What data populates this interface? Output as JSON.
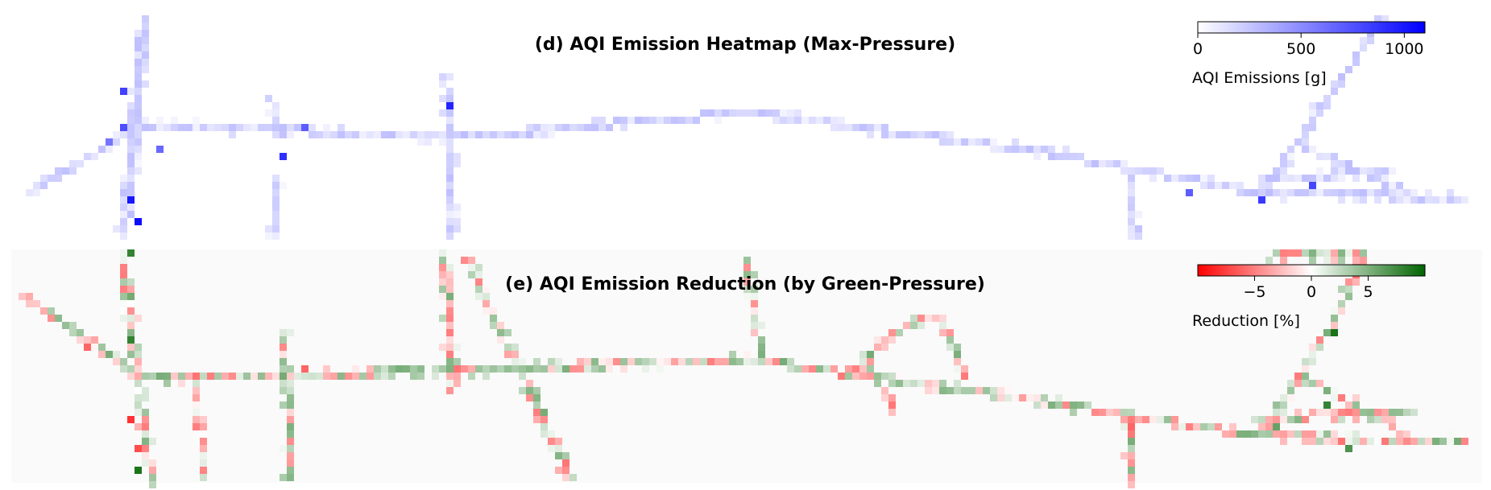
{
  "chart_data": [
    {
      "type": "heatmap",
      "panel": "d",
      "title": "(d) AQI Emission Heatmap (Max-Pressure)",
      "background": "#ffffff",
      "colormap": {
        "low": "#ffffff",
        "high": "#0000ff"
      },
      "colorbar": {
        "label": "AQI Emissions [g]",
        "range": [
          0,
          1100
        ],
        "ticks": [
          0,
          500,
          1000
        ],
        "tick_labels": [
          "0",
          "500",
          "1000"
        ]
      },
      "value_range_cells": [
        0,
        1100
      ],
      "network_segments": [
        {
          "from": [
            0.01,
            0.8
          ],
          "to": [
            0.09,
            0.5
          ]
        },
        {
          "from": [
            0.09,
            0.5
          ],
          "to": [
            0.3,
            0.56
          ]
        },
        {
          "from": [
            0.3,
            0.56
          ],
          "to": [
            0.5,
            0.45
          ]
        },
        {
          "from": [
            0.5,
            0.45
          ],
          "to": [
            0.7,
            0.62
          ]
        },
        {
          "from": [
            0.7,
            0.62
          ],
          "to": [
            0.85,
            0.8
          ]
        },
        {
          "from": [
            0.85,
            0.8
          ],
          "to": [
            0.99,
            0.82
          ]
        },
        {
          "from": [
            0.075,
            0.98
          ],
          "to": [
            0.09,
            0.05
          ]
        },
        {
          "from": [
            0.08,
            0.9
          ],
          "to": [
            0.09,
            0.1
          ]
        },
        {
          "from": [
            0.3,
            0.6
          ],
          "to": [
            0.3,
            0.99
          ]
        },
        {
          "from": [
            0.18,
            0.72
          ],
          "to": [
            0.18,
            0.98
          ]
        },
        {
          "from": [
            0.295,
            0.3
          ],
          "to": [
            0.3,
            0.58
          ]
        },
        {
          "from": [
            0.76,
            0.72
          ],
          "to": [
            0.765,
            0.99
          ]
        },
        {
          "from": [
            0.85,
            0.8
          ],
          "to": [
            0.9,
            0.35
          ]
        },
        {
          "from": [
            0.9,
            0.35
          ],
          "to": [
            0.93,
            0.05
          ]
        },
        {
          "from": [
            0.88,
            0.6
          ],
          "to": [
            0.95,
            0.8
          ]
        },
        {
          "from": [
            0.85,
            0.74
          ],
          "to": [
            0.94,
            0.7
          ]
        },
        {
          "from": [
            0.175,
            0.38
          ],
          "to": [
            0.185,
            0.56
          ]
        }
      ],
      "hotspots": [
        {
          "cell": [
            0.075,
            0.37
          ],
          "value": 820
        },
        {
          "cell": [
            0.078,
            0.5
          ],
          "value": 760
        },
        {
          "cell": [
            0.083,
            0.83
          ],
          "value": 1000
        },
        {
          "cell": [
            0.086,
            0.93
          ],
          "value": 1050
        },
        {
          "cell": [
            0.185,
            0.63
          ],
          "value": 900
        },
        {
          "cell": [
            0.3,
            0.43
          ],
          "value": 950
        },
        {
          "cell": [
            0.2,
            0.52
          ],
          "value": 700
        },
        {
          "cell": [
            0.85,
            0.82
          ],
          "value": 850
        },
        {
          "cell": [
            0.885,
            0.76
          ],
          "value": 800
        },
        {
          "cell": [
            0.8,
            0.8
          ],
          "value": 700
        },
        {
          "cell": [
            0.065,
            0.59
          ],
          "value": 600
        },
        {
          "cell": [
            0.1,
            0.62
          ],
          "value": 650
        }
      ]
    },
    {
      "type": "heatmap",
      "panel": "e",
      "title": "(e) AQI Emission Reduction (by Green-Pressure)",
      "background": "#fafafa",
      "colormap": {
        "low": "#ff0000",
        "mid": "#ffffff",
        "high": "#006400"
      },
      "colorbar": {
        "label": "Reduction [%]",
        "range": [
          -10,
          10
        ],
        "ticks": [
          -5,
          0,
          5
        ],
        "tick_labels": [
          "−5",
          "0",
          "5"
        ]
      },
      "value_range_cells": [
        -10,
        10
      ],
      "network_segments": [
        {
          "from": [
            0.01,
            0.2
          ],
          "to": [
            0.09,
            0.55
          ]
        },
        {
          "from": [
            0.09,
            0.55
          ],
          "to": [
            0.3,
            0.52
          ]
        },
        {
          "from": [
            0.3,
            0.52
          ],
          "to": [
            0.5,
            0.47
          ]
        },
        {
          "from": [
            0.5,
            0.47
          ],
          "to": [
            0.7,
            0.65
          ]
        },
        {
          "from": [
            0.7,
            0.65
          ],
          "to": [
            0.85,
            0.8
          ]
        },
        {
          "from": [
            0.85,
            0.8
          ],
          "to": [
            0.99,
            0.82
          ]
        },
        {
          "from": [
            0.075,
            0.02
          ],
          "to": [
            0.095,
            0.98
          ]
        },
        {
          "from": [
            0.185,
            0.35
          ],
          "to": [
            0.19,
            0.98
          ]
        },
        {
          "from": [
            0.125,
            0.55
          ],
          "to": [
            0.13,
            0.98
          ]
        },
        {
          "from": [
            0.295,
            0.02
          ],
          "to": [
            0.3,
            0.6
          ]
        },
        {
          "from": [
            0.31,
            0.05
          ],
          "to": [
            0.36,
            0.7
          ]
        },
        {
          "from": [
            0.35,
            0.6
          ],
          "to": [
            0.38,
            0.98
          ]
        },
        {
          "from": [
            0.5,
            0.05
          ],
          "to": [
            0.51,
            0.45
          ]
        },
        {
          "from": [
            0.57,
            0.55
          ],
          "to": [
            0.6,
            0.35
          ]
        },
        {
          "from": [
            0.6,
            0.35
          ],
          "to": [
            0.63,
            0.28
          ]
        },
        {
          "from": [
            0.63,
            0.28
          ],
          "to": [
            0.65,
            0.55
          ]
        },
        {
          "from": [
            0.58,
            0.45
          ],
          "to": [
            0.6,
            0.7
          ]
        },
        {
          "from": [
            0.76,
            0.7
          ],
          "to": [
            0.762,
            0.99
          ]
        },
        {
          "from": [
            0.85,
            0.8
          ],
          "to": [
            0.9,
            0.3
          ]
        },
        {
          "from": [
            0.9,
            0.3
          ],
          "to": [
            0.92,
            0.02
          ]
        },
        {
          "from": [
            0.86,
            0.02
          ],
          "to": [
            0.92,
            0.03
          ]
        },
        {
          "from": [
            0.88,
            0.55
          ],
          "to": [
            0.95,
            0.8
          ]
        },
        {
          "from": [
            0.85,
            0.72
          ],
          "to": [
            0.95,
            0.7
          ]
        }
      ],
      "hotspots": [
        {
          "cell": [
            0.05,
            0.42
          ],
          "value": -6
        },
        {
          "cell": [
            0.08,
            0.74
          ],
          "value": -8
        },
        {
          "cell": [
            0.085,
            0.86
          ],
          "value": -7
        },
        {
          "cell": [
            0.083,
            0.02
          ],
          "value": 8
        },
        {
          "cell": [
            0.088,
            0.95
          ],
          "value": 9
        },
        {
          "cell": [
            0.081,
            0.4
          ],
          "value": 8
        },
        {
          "cell": [
            0.2,
            0.51
          ],
          "value": -6
        },
        {
          "cell": [
            0.3,
            0.45
          ],
          "value": -5
        },
        {
          "cell": [
            0.4,
            0.5
          ],
          "value": 4
        },
        {
          "cell": [
            0.76,
            0.76
          ],
          "value": -6
        },
        {
          "cell": [
            0.9,
            0.37
          ],
          "value": 9
        },
        {
          "cell": [
            0.895,
            0.68
          ],
          "value": 8
        },
        {
          "cell": [
            0.91,
            0.85
          ],
          "value": 7
        },
        {
          "cell": [
            0.86,
            0.75
          ],
          "value": 6
        }
      ]
    }
  ]
}
